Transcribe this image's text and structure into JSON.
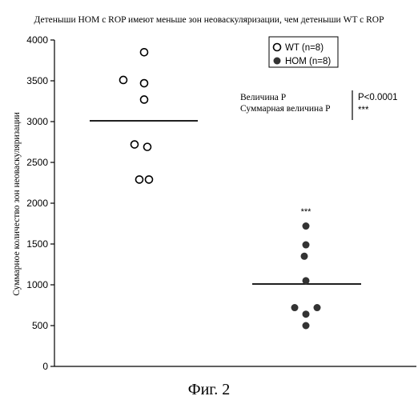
{
  "chart_data": {
    "type": "scatter",
    "title": "Детеныши НОМ с ROP имеют меньше зон неоваскуляризации, чем детеныши WT с ROP",
    "ylabel": "Суммарное количество зон неоваскуляризации",
    "ylim": [
      0,
      4000
    ],
    "yticks": [
      0,
      500,
      1000,
      1500,
      2000,
      2500,
      3000,
      3500,
      4000
    ],
    "grid": false,
    "legend_position": "top-right",
    "series": [
      {
        "name": "WT (n=8)",
        "marker": "open-circle",
        "color": "#000000",
        "points": [
          {
            "group": 1,
            "value": 3850
          },
          {
            "group": 1,
            "value": 3510
          },
          {
            "group": 1,
            "value": 3470
          },
          {
            "group": 1,
            "value": 3270
          },
          {
            "group": 1,
            "value": 2720
          },
          {
            "group": 1,
            "value": 2690
          },
          {
            "group": 1,
            "value": 2290
          },
          {
            "group": 1,
            "value": 2290
          }
        ],
        "mean": 3010
      },
      {
        "name": "HOM (n=8)",
        "marker": "filled-circle",
        "color": "#333333",
        "points": [
          {
            "group": 2,
            "value": 1720
          },
          {
            "group": 2,
            "value": 1490
          },
          {
            "group": 2,
            "value": 1350
          },
          {
            "group": 2,
            "value": 1050
          },
          {
            "group": 2,
            "value": 720
          },
          {
            "group": 2,
            "value": 720
          },
          {
            "group": 2,
            "value": 640
          },
          {
            "group": 2,
            "value": 500
          }
        ],
        "mean": 1010,
        "annotation": "***"
      }
    ],
    "stats": {
      "p_label": "Величина P",
      "p_value": "P<0.0001",
      "summary_label": "Суммарная величина P",
      "summary_value": "***"
    }
  },
  "caption": "Фиг. 2"
}
